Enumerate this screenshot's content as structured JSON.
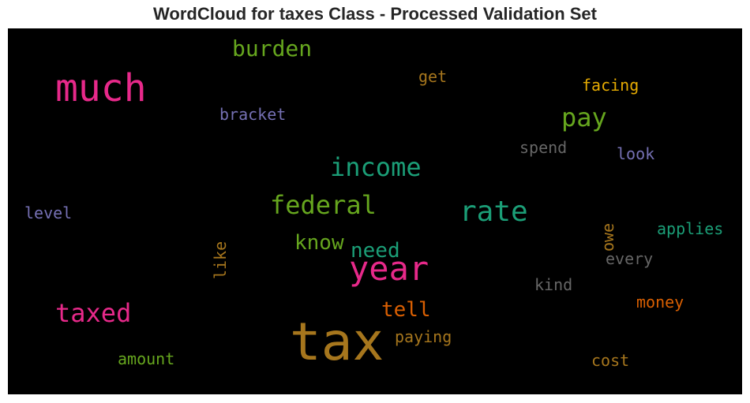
{
  "chart_data": {
    "type": "wordcloud",
    "title": "WordCloud for taxes Class - Processed Validation Set",
    "background": "#000000",
    "words": [
      {
        "text": "tax",
        "color": "#a6761d"
      },
      {
        "text": "much",
        "color": "#e7298a"
      },
      {
        "text": "year",
        "color": "#e7298a"
      },
      {
        "text": "rate",
        "color": "#1b9e77"
      },
      {
        "text": "income",
        "color": "#1b9e77"
      },
      {
        "text": "federal",
        "color": "#66a61e"
      },
      {
        "text": "taxed",
        "color": "#e7298a"
      },
      {
        "text": "pay",
        "color": "#66a61e"
      },
      {
        "text": "burden",
        "color": "#66a61e"
      },
      {
        "text": "tell",
        "color": "#d95f02"
      },
      {
        "text": "know",
        "color": "#66a61e"
      },
      {
        "text": "need",
        "color": "#1b9e77"
      },
      {
        "text": "bracket",
        "color": "#7570b3"
      },
      {
        "text": "get",
        "color": "#a6761d"
      },
      {
        "text": "facing",
        "color": "#e6ab02"
      },
      {
        "text": "spend",
        "color": "#666666"
      },
      {
        "text": "look",
        "color": "#7570b3"
      },
      {
        "text": "level",
        "color": "#7570b3"
      },
      {
        "text": "applies",
        "color": "#1b9e77"
      },
      {
        "text": "owe",
        "color": "#a6761d"
      },
      {
        "text": "every",
        "color": "#666666"
      },
      {
        "text": "like",
        "color": "#a6761d"
      },
      {
        "text": "kind",
        "color": "#666666"
      },
      {
        "text": "money",
        "color": "#d95f02"
      },
      {
        "text": "paying",
        "color": "#a6761d"
      },
      {
        "text": "amount",
        "color": "#66a61e"
      },
      {
        "text": "cost",
        "color": "#a6761d"
      }
    ]
  }
}
